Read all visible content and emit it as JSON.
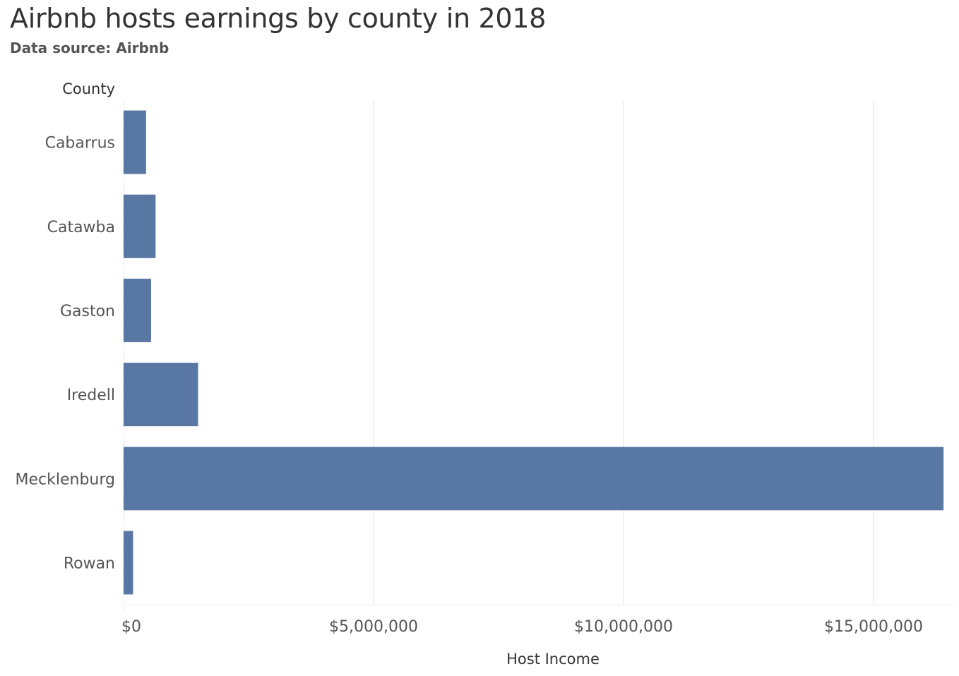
{
  "header": {
    "title": "Airbnb hosts earnings by county in 2018",
    "subtitle": "Data source: Airbnb"
  },
  "chart_data": {
    "type": "bar",
    "orientation": "horizontal",
    "title": "Airbnb hosts earnings by county in 2018",
    "subtitle": "Data source: Airbnb",
    "ylabel": "County",
    "xlabel": "Host Income",
    "categories": [
      "Cabarrus",
      "Catawba",
      "Gaston",
      "Iredell",
      "Mecklenburg",
      "Rowan"
    ],
    "values": [
      450000,
      640000,
      550000,
      1490000,
      16400000,
      190000
    ],
    "xlim": [
      0,
      16700000
    ],
    "xticks": [
      0,
      5000000,
      10000000,
      15000000
    ],
    "xtick_labels": [
      "$0",
      "$5,000,000",
      "$10,000,000",
      "$15,000,000"
    ],
    "grid": "vertical",
    "bar_color": "#5877a3",
    "grid_color": "#ebebeb"
  }
}
